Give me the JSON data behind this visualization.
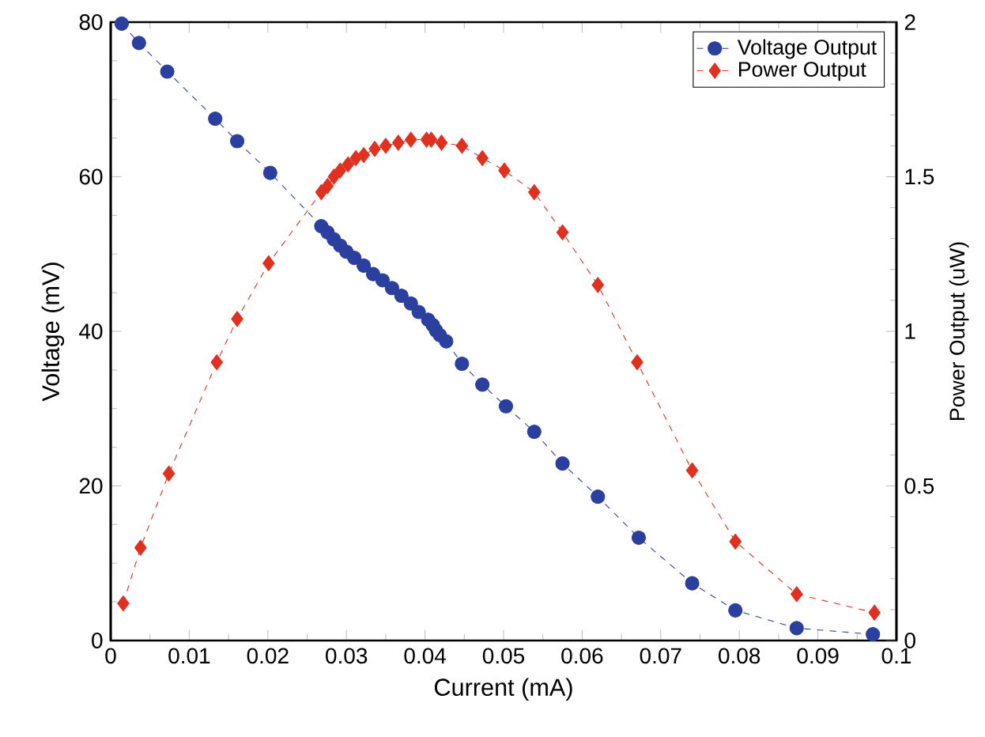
{
  "chart_data": {
    "type": "line",
    "xlabel": "Current (mA)",
    "ylabel": "Voltage (mV)",
    "y2label": "Power Output (uW)",
    "xlim": [
      0,
      0.1
    ],
    "xticks": [
      0,
      0.01,
      0.02,
      0.03,
      0.04,
      0.05,
      0.06,
      0.07,
      0.08,
      0.09,
      0.1
    ],
    "ylim": [
      0,
      80
    ],
    "yticks": [
      0,
      20,
      40,
      60,
      80
    ],
    "y2lim": [
      0,
      2
    ],
    "y2ticks": [
      0,
      0.5,
      1,
      1.5,
      2
    ],
    "legend": "top right",
    "grid": false,
    "line_style": "dashed",
    "series": [
      {
        "name": "Voltage Output",
        "color": "#2b3f9e",
        "marker": "circle",
        "x": [
          0.0014,
          0.0036,
          0.0072,
          0.0133,
          0.0161,
          0.0203,
          0.0268,
          0.0276,
          0.0284,
          0.0292,
          0.03,
          0.031,
          0.0322,
          0.0334,
          0.0346,
          0.0358,
          0.037,
          0.0382,
          0.0392,
          0.0404,
          0.041,
          0.0414,
          0.0419,
          0.0427,
          0.0447,
          0.0473,
          0.0503,
          0.0539,
          0.0575,
          0.062,
          0.0672,
          0.074,
          0.0795,
          0.0873,
          0.097
        ],
        "values": [
          79.8,
          77.3,
          73.6,
          67.5,
          64.6,
          60.5,
          53.6,
          52.8,
          51.9,
          51.1,
          50.3,
          49.5,
          48.5,
          47.4,
          46.6,
          45.6,
          44.6,
          43.6,
          42.5,
          41.5,
          40.8,
          40.1,
          39.5,
          38.7,
          35.8,
          33.1,
          30.3,
          27.0,
          22.9,
          18.6,
          13.3,
          7.4,
          3.9,
          1.6,
          0.8
        ]
      },
      {
        "name": "Power Output",
        "color": "#e03020",
        "marker": "diamond",
        "axis": "y2",
        "x": [
          0.0016,
          0.0038,
          0.0074,
          0.0135,
          0.0161,
          0.0201,
          0.0268,
          0.0276,
          0.0284,
          0.0292,
          0.0302,
          0.0312,
          0.0322,
          0.0336,
          0.035,
          0.0366,
          0.0382,
          0.0402,
          0.0408,
          0.0421,
          0.0447,
          0.0473,
          0.0501,
          0.0539,
          0.0575,
          0.062,
          0.067,
          0.074,
          0.0795,
          0.0873,
          0.0972
        ],
        "values": [
          0.12,
          0.3,
          0.54,
          0.9,
          1.04,
          1.22,
          1.45,
          1.47,
          1.5,
          1.52,
          1.54,
          1.56,
          1.57,
          1.59,
          1.6,
          1.61,
          1.62,
          1.62,
          1.62,
          1.61,
          1.6,
          1.56,
          1.52,
          1.45,
          1.32,
          1.15,
          0.9,
          0.55,
          0.32,
          0.15,
          0.09
        ]
      }
    ]
  }
}
